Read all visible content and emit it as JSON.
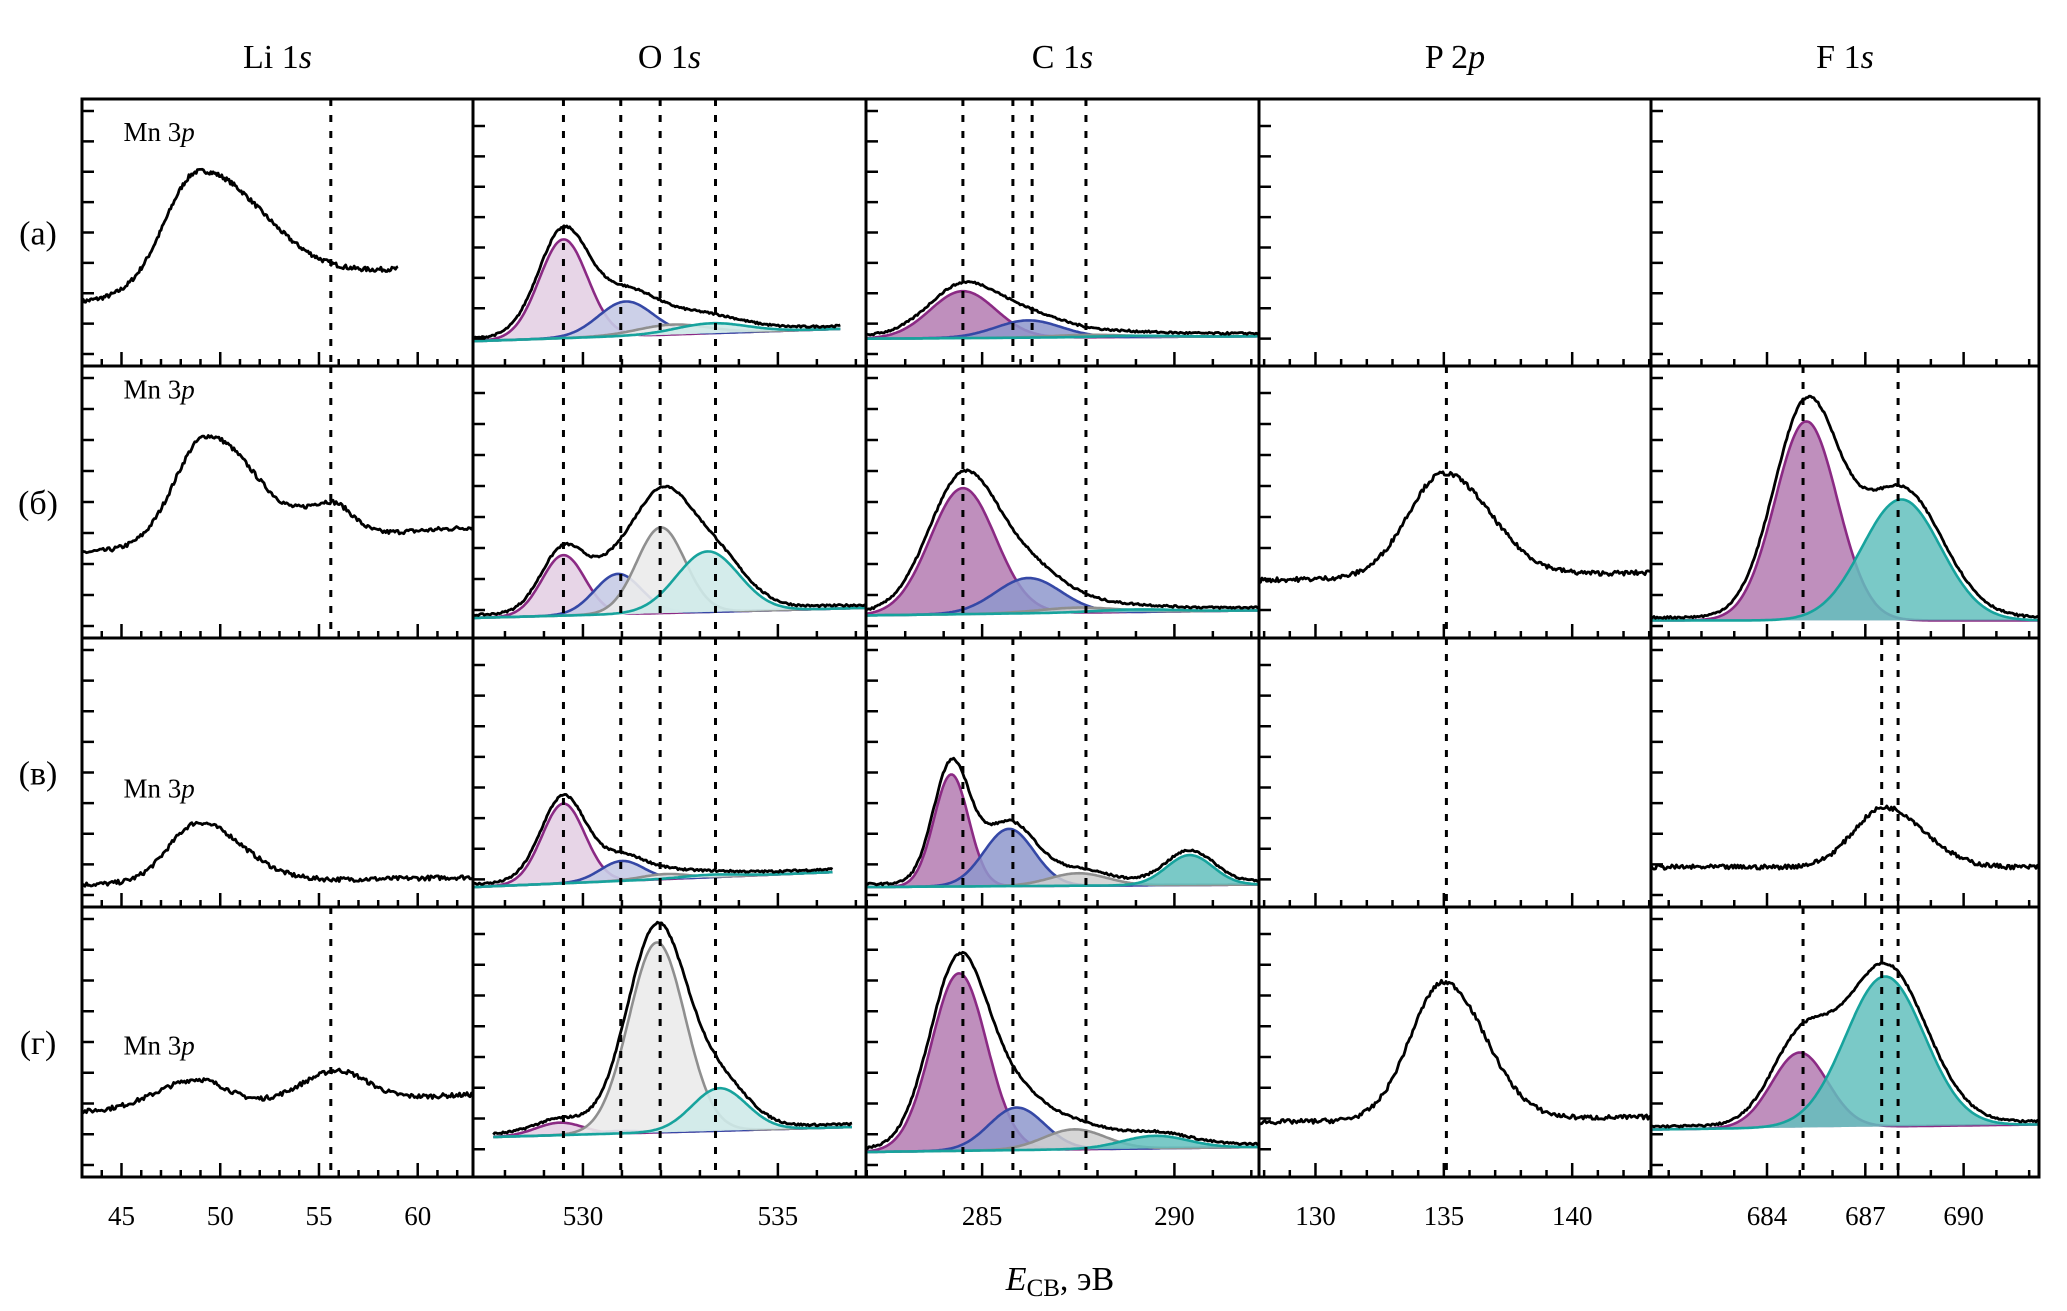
{
  "chart_data": {
    "type": "line",
    "title": "",
    "xlabel": "E_CB, эВ",
    "xlabel_main": "E",
    "xlabel_sub": "CB",
    "xlabel_unit": ", эВ",
    "ylabel": "",
    "grid": false,
    "legend": "none",
    "component_colors": {
      "purple": {
        "line": "#8b2a84",
        "fill_light": "#e4d0e4",
        "fill_dark": "#b47bb1"
      },
      "blue": {
        "line": "#3548a6",
        "fill_light": "#c6cbe6",
        "fill_dark": "#8e98cc"
      },
      "gray": {
        "line": "#8f8f8f",
        "fill_light": "#ebebeb",
        "fill_dark": "#cfcfcf"
      },
      "teal": {
        "line": "#17a39d",
        "fill_light": "#cfeae9",
        "fill_dark": "#63c0bd"
      }
    },
    "rows": [
      {
        "label": "(а)"
      },
      {
        "label": "(б)"
      },
      {
        "label": "(в)"
      },
      {
        "label": "(г)"
      }
    ],
    "columns": [
      {
        "title_main": "Li 1",
        "title_ital": "s",
        "xlim": [
          43.0,
          62.8
        ],
        "major_ticks": [
          45,
          50,
          55,
          60
        ],
        "minor_step": 1,
        "tick_labels": [
          "45",
          "50",
          "55",
          "60"
        ],
        "panels": [
          {
            "annotation": "Mn 3p",
            "annotation_main": "Mn 3",
            "annotation_ital": "p",
            "ann_x": 45.1,
            "ann_y": 0.87,
            "dashed": [
              55.6
            ],
            "spectrum_xmax": 59.0,
            "baseline": [
              0.22,
              0.35
            ],
            "peaks": [
              {
                "c": 48.9,
                "h": 0.48,
                "w": 1.7,
                "tail": 3.2
              }
            ],
            "components": []
          },
          {
            "annotation": "Mn 3p",
            "annotation_main": "Mn 3",
            "annotation_ital": "p",
            "ann_x": 45.1,
            "ann_y": 0.91,
            "dashed": [
              55.6
            ],
            "baseline": [
              0.3,
              0.4
            ],
            "peaks": [
              {
                "c": 49.3,
                "h": 0.43,
                "w": 1.6,
                "tail": 2.5
              },
              {
                "c": 55.7,
                "h": 0.12,
                "w": 1.3,
                "tail": 1.0
              }
            ],
            "components": []
          },
          {
            "annotation": "Mn 3p",
            "annotation_main": "Mn 3",
            "annotation_ital": "p",
            "ann_x": 45.1,
            "ann_y": 0.4,
            "dashed": [],
            "baseline": [
              0.05,
              0.08
            ],
            "peaks": [
              {
                "c": 48.9,
                "h": 0.24,
                "w": 1.5,
                "tail": 2.2
              }
            ],
            "components": []
          },
          {
            "annotation": "Mn 3p",
            "annotation_main": "Mn 3",
            "annotation_ital": "p",
            "ann_x": 45.1,
            "ann_y": 0.45,
            "dashed": [
              55.6
            ],
            "baseline": [
              0.22,
              0.29
            ],
            "peaks": [
              {
                "c": 48.8,
                "h": 0.11,
                "w": 2.0,
                "tail": 1.5
              },
              {
                "c": 55.9,
                "h": 0.12,
                "w": 1.8,
                "tail": 1.5
              }
            ],
            "components": []
          }
        ]
      },
      {
        "title_main": "O 1",
        "title_ital": "s",
        "xlim": [
          527.18,
          537.26
        ],
        "major_ticks": [
          530,
          535
        ],
        "minor_step": 1,
        "tick_labels": [
          "530",
          "535"
        ],
        "fill_style": "light",
        "panels": [
          {
            "dashed": [
              529.5,
              530.97,
              531.98,
              533.4
            ],
            "xrange": [
              527.2,
              536.6
            ],
            "baseline": [
              0.06,
              0.11
            ],
            "components": [
              {
                "color": "purple",
                "c": 529.5,
                "h": 0.4,
                "w": 0.62
              },
              {
                "color": "blue",
                "c": 531.1,
                "h": 0.14,
                "w": 0.7
              },
              {
                "color": "gray",
                "c": 532.3,
                "h": 0.04,
                "w": 0.9
              },
              {
                "color": "teal",
                "c": 533.3,
                "h": 0.04,
                "w": 0.9
              }
            ]
          },
          {
            "dashed": [
              529.5,
              530.97,
              531.98,
              533.4
            ],
            "xrange": [
              527.2,
              537.26
            ],
            "baseline": [
              0.04,
              0.08
            ],
            "components": [
              {
                "color": "purple",
                "c": 529.5,
                "h": 0.24,
                "w": 0.55
              },
              {
                "color": "blue",
                "c": 530.9,
                "h": 0.16,
                "w": 0.6
              },
              {
                "color": "gray",
                "c": 532.0,
                "h": 0.34,
                "w": 0.62
              },
              {
                "color": "teal",
                "c": 533.2,
                "h": 0.24,
                "w": 0.8
              }
            ]
          },
          {
            "dashed": [
              529.5,
              530.97,
              531.98,
              533.4
            ],
            "xrange": [
              527.2,
              536.4
            ],
            "baseline": [
              0.04,
              0.1
            ],
            "components": [
              {
                "color": "purple",
                "c": 529.5,
                "h": 0.32,
                "w": 0.55
              },
              {
                "color": "blue",
                "c": 531.0,
                "h": 0.08,
                "w": 0.55
              },
              {
                "color": "gray",
                "c": 532.1,
                "h": 0.02,
                "w": 0.6
              },
              {
                "color": "teal",
                "c": 533.3,
                "h": 0.01,
                "w": 0.7
              }
            ]
          },
          {
            "dashed": [
              529.5,
              530.97,
              531.98,
              533.4
            ],
            "xrange": [
              527.7,
              536.9
            ],
            "baseline": [
              0.12,
              0.16
            ],
            "components": [
              {
                "color": "purple",
                "c": 529.4,
                "h": 0.05,
                "w": 0.6
              },
              {
                "color": "blue",
                "c": 530.9,
                "h": 0.01,
                "w": 0.6
              },
              {
                "color": "gray",
                "c": 531.9,
                "h": 0.76,
                "w": 0.72
              },
              {
                "color": "teal",
                "c": 533.5,
                "h": 0.17,
                "w": 0.7
              }
            ]
          }
        ]
      },
      {
        "title_main": "C 1",
        "title_ital": "s",
        "xlim": [
          281.98,
          292.2
        ],
        "major_ticks": [
          285,
          290
        ],
        "minor_step": 1,
        "tick_labels": [
          "285",
          "290"
        ],
        "fill_style": "dark",
        "panels": [
          {
            "dashed": [
              284.5,
              285.8,
              286.3,
              287.7
            ],
            "xrange": [
              281.98,
              292.2
            ],
            "baseline": [
              0.07,
              0.08
            ],
            "components": [
              {
                "color": "purple",
                "c": 284.5,
                "h": 0.19,
                "w": 0.85
              },
              {
                "color": "blue",
                "c": 286.2,
                "h": 0.07,
                "w": 0.85
              },
              {
                "color": "gray",
                "c": 287.8,
                "h": 0.01,
                "w": 1.0
              },
              {
                "color": "teal",
                "c": 289.0,
                "h": 0.005,
                "w": 1.0
              }
            ]
          },
          {
            "dashed": [
              284.5,
              287.7
            ],
            "xrange": [
              281.98,
              292.2
            ],
            "baseline": [
              0.05,
              0.07
            ],
            "components": [
              {
                "color": "purple",
                "c": 284.5,
                "h": 0.5,
                "w": 0.85
              },
              {
                "color": "blue",
                "c": 286.2,
                "h": 0.14,
                "w": 0.85
              },
              {
                "color": "gray",
                "c": 287.5,
                "h": 0.02,
                "w": 1.0
              },
              {
                "color": "teal",
                "c": 289.0,
                "h": 0.01,
                "w": 1.0
              }
            ]
          },
          {
            "dashed": [
              284.5,
              285.8,
              287.7
            ],
            "xrange": [
              281.98,
              292.2
            ],
            "baseline": [
              0.04,
              0.05
            ],
            "components": [
              {
                "color": "purple",
                "c": 284.2,
                "h": 0.45,
                "w": 0.45
              },
              {
                "color": "blue",
                "c": 285.7,
                "h": 0.23,
                "w": 0.65
              },
              {
                "color": "gray",
                "c": 287.5,
                "h": 0.05,
                "w": 0.75
              },
              {
                "color": "teal",
                "c": 290.4,
                "h": 0.12,
                "w": 0.6
              }
            ]
          },
          {
            "dashed": [
              284.5,
              285.8,
              287.7
            ],
            "xrange": [
              281.98,
              292.2
            ],
            "baseline": [
              0.06,
              0.08
            ],
            "components": [
              {
                "color": "purple",
                "c": 284.4,
                "h": 0.71,
                "w": 0.72
              },
              {
                "color": "blue",
                "c": 285.9,
                "h": 0.17,
                "w": 0.72
              },
              {
                "color": "gray",
                "c": 287.4,
                "h": 0.08,
                "w": 0.8
              },
              {
                "color": "teal",
                "c": 289.5,
                "h": 0.05,
                "w": 0.85
              }
            ]
          }
        ]
      },
      {
        "title_main": "P 2",
        "title_ital": "p",
        "xlim": [
          127.8,
          143.07
        ],
        "major_ticks": [
          130,
          135,
          140
        ],
        "minor_step": 1,
        "tick_labels": [
          "130",
          "135",
          "140"
        ],
        "panels": [
          {
            "dashed": [],
            "peaks": [],
            "components": []
          },
          {
            "dashed": [
              135.1
            ],
            "baseline": [
              0.19,
              0.22
            ],
            "peaks": [
              {
                "c": 135.0,
                "h": 0.41,
                "w": 1.4,
                "tail": 1.8
              }
            ],
            "components": []
          },
          {
            "dashed": [
              135.1
            ],
            "peaks": [],
            "components": []
          },
          {
            "dashed": [
              135.1
            ],
            "baseline": [
              0.18,
              0.2
            ],
            "peaks": [
              {
                "c": 135.0,
                "h": 0.55,
                "w": 1.3,
                "tail": 1.6
              }
            ],
            "components": []
          }
        ]
      },
      {
        "title_main": "F 1",
        "title_ital": "s",
        "xlim": [
          680.46,
          692.3
        ],
        "major_ticks": [
          684,
          687,
          690
        ],
        "minor_step": 1,
        "tick_labels": [
          "684",
          "687",
          "690"
        ],
        "fill_style": "dark",
        "panels": [
          {
            "dashed": [],
            "peaks": [],
            "components": []
          },
          {
            "dashed": [
              685.1,
              688.0
            ],
            "xrange": [
              680.46,
              692.3
            ],
            "baseline": [
              0.03,
              0.03
            ],
            "components": [
              {
                "color": "purple",
                "c": 685.2,
                "h": 0.79,
                "w": 0.95
              },
              {
                "color": "teal",
                "c": 688.1,
                "h": 0.48,
                "w": 1.2
              }
            ]
          },
          {
            "dashed": [
              687.5,
              688.0
            ],
            "baseline": [
              0.12,
              0.12
            ],
            "peaks": [
              {
                "c": 687.6,
                "h": 0.24,
                "w": 0.95,
                "tail": 1.2
              }
            ],
            "components": []
          },
          {
            "dashed": [
              685.1,
              687.5,
              688.0
            ],
            "xrange": [
              680.46,
              692.3
            ],
            "baseline": [
              0.15,
              0.17
            ],
            "components": [
              {
                "color": "purple",
                "c": 685.0,
                "h": 0.3,
                "w": 0.85
              },
              {
                "color": "teal",
                "c": 687.6,
                "h": 0.6,
                "w": 1.2
              }
            ]
          }
        ]
      }
    ]
  }
}
